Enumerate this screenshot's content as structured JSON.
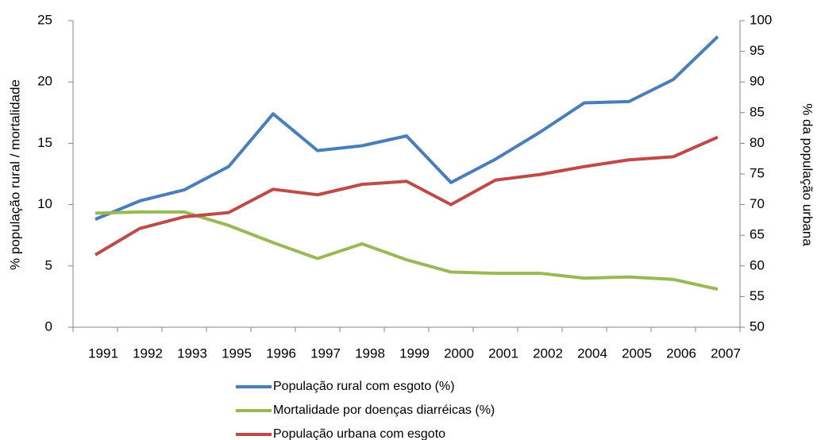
{
  "chart_data": {
    "type": "line",
    "y_label": "% população rural / mortalidade",
    "y2_label": "% da população urbana",
    "categories": [
      "1991",
      "1992",
      "1993",
      "1995",
      "1996",
      "1997",
      "1998",
      "1999",
      "2000",
      "2001",
      "2002",
      "2004",
      "2005",
      "2006",
      "2007"
    ],
    "series": [
      {
        "name": "População rural com esgoto (%)",
        "color": "#4a7ebb",
        "values": [
          8.8,
          10.3,
          11.2,
          13.1,
          17.4,
          14.4,
          14.8,
          15.6,
          11.8,
          13.7,
          15.9,
          18.3,
          18.4,
          20.2,
          23.7
        ]
      },
      {
        "name": "Mortalidade por doenças diarréicas (%)",
        "color": "#98b954",
        "values": [
          9.3,
          9.4,
          9.4,
          8.3,
          6.9,
          5.6,
          6.8,
          5.5,
          4.5,
          4.4,
          4.4,
          4.0,
          4.1,
          3.9,
          3.1
        ]
      },
      {
        "name": "População urbana com esgoto",
        "color": "#be4b48",
        "axis": "y2",
        "values": [
          61.8,
          66.1,
          68.0,
          68.7,
          72.5,
          71.6,
          73.3,
          73.8,
          70.0,
          74.0,
          74.9,
          76.2,
          77.3,
          77.8,
          81.0
        ]
      }
    ],
    "ylim": [
      0,
      25
    ],
    "yticks": [
      0,
      5,
      10,
      15,
      20,
      25
    ],
    "y2lim": [
      50,
      100
    ],
    "y2ticks": [
      50,
      55,
      60,
      65,
      70,
      75,
      80,
      85,
      90,
      95,
      100
    ],
    "grid": false,
    "legend": "bottom"
  }
}
